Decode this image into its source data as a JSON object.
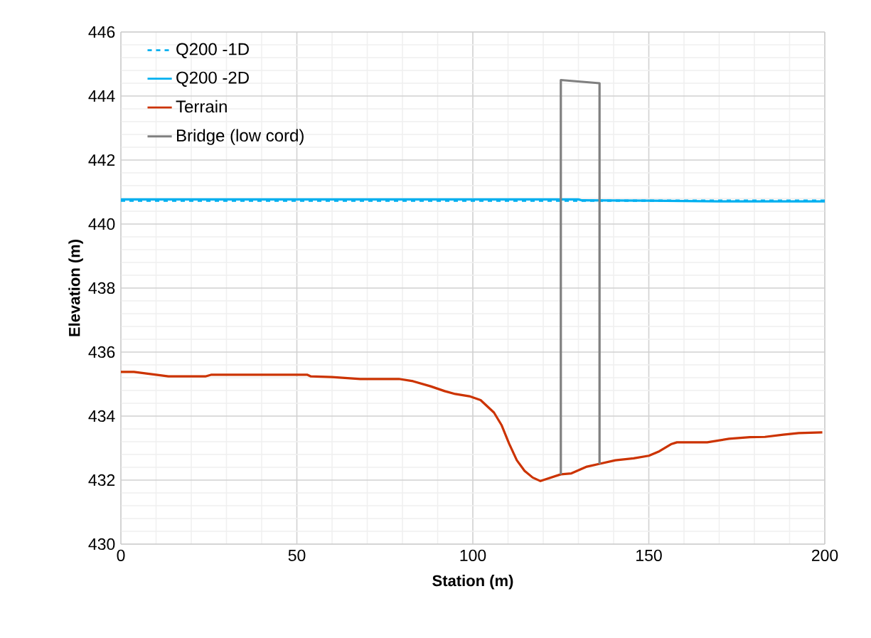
{
  "chart_data": {
    "type": "line",
    "xlabel": "Station (m)",
    "ylabel": "Elevation (m)",
    "xlim": [
      0,
      200
    ],
    "ylim": [
      430,
      446
    ],
    "xticks": [
      0,
      50,
      100,
      150,
      200
    ],
    "yticks": [
      430,
      432,
      434,
      436,
      438,
      440,
      442,
      444,
      446
    ],
    "grid": true,
    "legend": "top left",
    "marker": "none",
    "series": [
      {
        "name": "Q200 -1D",
        "color": "#00b0f0",
        "line_style": "dashed",
        "x": [
          0,
          200
        ],
        "values": [
          440.73,
          440.73
        ]
      },
      {
        "name": "Q200 -2D",
        "color": "#00b0f0",
        "line_style": "solid",
        "x": [
          0,
          130,
          131,
          150,
          170,
          172,
          200
        ],
        "values": [
          440.77,
          440.77,
          440.74,
          440.73,
          440.71,
          440.71,
          440.71
        ]
      },
      {
        "name": "Terrain",
        "color": "#cc3300",
        "line_style": "solid",
        "x": [
          0,
          3.7,
          10,
          13.5,
          24,
          25.6,
          53,
          54,
          60,
          68,
          79,
          83,
          88,
          92,
          95,
          99,
          102.2,
          106,
          108.2,
          110.3,
          112.5,
          114.7,
          117,
          119.2,
          125,
          128,
          132.4,
          136.1,
          140.5,
          145.7,
          150,
          153,
          156.3,
          158,
          166.6,
          172.8,
          178.7,
          183,
          188.2,
          192.6,
          199.3
        ],
        "values": [
          435.38,
          435.38,
          435.29,
          435.24,
          435.24,
          435.29,
          435.29,
          435.24,
          435.22,
          435.16,
          435.16,
          435.09,
          434.93,
          434.78,
          434.69,
          434.62,
          434.5,
          434.11,
          433.71,
          433.14,
          432.62,
          432.29,
          432.08,
          431.97,
          432.18,
          432.21,
          432.42,
          432.51,
          432.62,
          432.68,
          432.76,
          432.9,
          433.12,
          433.18,
          433.18,
          433.29,
          433.34,
          433.35,
          433.42,
          433.47,
          433.49
        ]
      },
      {
        "name": "Bridge (low cord)",
        "color": "#808080",
        "line_style": "solid",
        "x": [
          125,
          125,
          136,
          136
        ],
        "values": [
          432.18,
          444.5,
          444.4,
          432.5
        ]
      }
    ]
  }
}
